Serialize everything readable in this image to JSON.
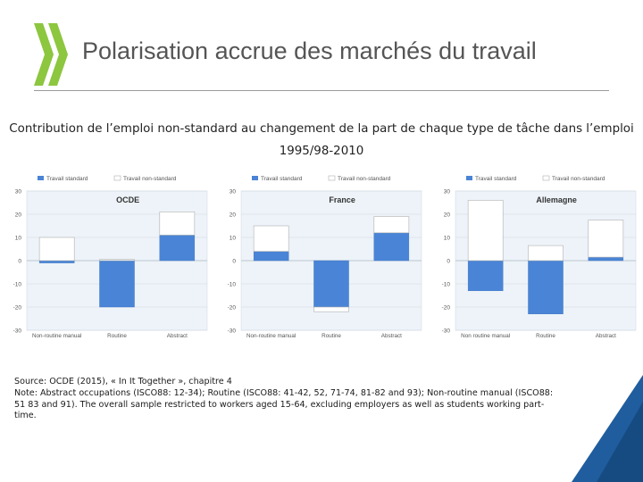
{
  "header": {
    "title": "Polarisation accrue des marchés du travail",
    "logo_color": "#8dc63f"
  },
  "subtitle": {
    "line1": "Contribution de l’emploi non-standard au changement de la part de chaque type de tâche dans l’emploi",
    "line2": "1995/98-2010"
  },
  "colors": {
    "standard": "#4a84d6",
    "non_standard": "#ffffff",
    "non_standard_border": "#b0b0b0",
    "plot_bg": "#edf3f8",
    "accent": "#1f5d9e"
  },
  "chart_data": [
    {
      "type": "bar",
      "stacked": true,
      "title": "OCDE",
      "legend": [
        "Travail standard",
        "Travail non-standard"
      ],
      "categories": [
        "Non-routine manual",
        "Routine",
        "Abstract"
      ],
      "ylim": [
        -30,
        30
      ],
      "yticks": [
        "30",
        "20",
        "10",
        "0",
        "-10",
        "-20",
        "-30"
      ],
      "series": [
        {
          "name": "Travail standard",
          "values": [
            -1,
            -20,
            11
          ]
        },
        {
          "name": "Travail non-standard",
          "values": [
            10,
            0.5,
            10
          ]
        }
      ]
    },
    {
      "type": "bar",
      "stacked": true,
      "title": "France",
      "legend": [
        "Travail standard",
        "Travail non-standard"
      ],
      "categories": [
        "Non-routine manual",
        "Routine",
        "Abstract"
      ],
      "ylim": [
        -30,
        30
      ],
      "yticks": [
        "30",
        "20",
        "10",
        "0",
        "-10",
        "-20",
        "-30"
      ],
      "series": [
        {
          "name": "Travail standard",
          "values": [
            4,
            -20,
            12
          ]
        },
        {
          "name": "Travail non-standard",
          "values": [
            11,
            -2,
            7
          ]
        }
      ]
    },
    {
      "type": "bar",
      "stacked": true,
      "title": "Allemagne",
      "legend": [
        "Travail standard",
        "Travail non-standard"
      ],
      "categories": [
        "Non routine manual",
        "Routine",
        "Abstract"
      ],
      "ylim": [
        -30,
        30
      ],
      "yticks": [
        "30",
        "20",
        "10",
        "0",
        "-10",
        "-20",
        "-30"
      ],
      "series": [
        {
          "name": "Travail standard",
          "values": [
            -13,
            -23,
            1.5
          ]
        },
        {
          "name": "Travail non-standard",
          "values": [
            26,
            6.5,
            16
          ]
        }
      ]
    }
  ],
  "source": {
    "line1": "Source: OCDE (2015), « In It Together », chapitre 4",
    "line2": "Note: Abstract occupations (ISCO88: 12-34); Routine (ISCO88: 41-42, 52, 71-74, 81-82 and 93); Non-routine manual (ISCO88: 51 83 and 91). The overall sample restricted to workers aged 15-64, excluding employers as well as students working part-time."
  }
}
